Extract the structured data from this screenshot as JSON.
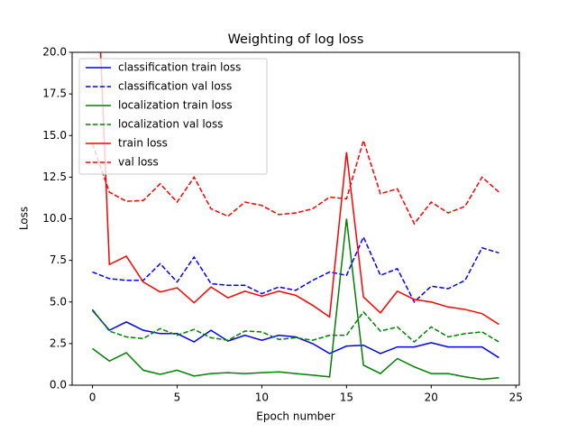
{
  "chart_data": {
    "type": "line",
    "title": "Weighting of log loss",
    "x_label": "Epoch number",
    "y_label": "Loss",
    "x": [
      0,
      1,
      2,
      3,
      4,
      5,
      6,
      7,
      8,
      9,
      10,
      11,
      12,
      13,
      14,
      15,
      16,
      17,
      18,
      19,
      20,
      21,
      22,
      23,
      24
    ],
    "series": [
      {
        "name": "classification train loss",
        "color": "#0000ff",
        "linestyle": "solid",
        "values": [
          4.5,
          3.3,
          3.8,
          3.3,
          3.1,
          3.1,
          2.6,
          3.3,
          2.65,
          3.0,
          2.7,
          3.0,
          2.9,
          2.5,
          1.9,
          2.35,
          2.4,
          1.9,
          2.3,
          2.3,
          2.55,
          2.3,
          2.3,
          2.3,
          1.65
        ]
      },
      {
        "name": "classification val loss",
        "color": "#0000ff",
        "linestyle": "dashed",
        "values": [
          6.8,
          6.4,
          6.3,
          6.3,
          7.3,
          6.2,
          7.7,
          6.1,
          6.0,
          6.0,
          5.5,
          5.9,
          5.7,
          6.3,
          6.8,
          6.6,
          8.9,
          6.6,
          7.0,
          5.0,
          5.95,
          5.8,
          6.3,
          8.25,
          7.95
        ]
      },
      {
        "name": "localization train loss",
        "color": "#008000",
        "linestyle": "solid",
        "values": [
          2.2,
          1.45,
          1.95,
          0.9,
          0.65,
          0.9,
          0.55,
          0.7,
          0.75,
          0.7,
          0.75,
          0.8,
          0.7,
          0.6,
          0.5,
          10.0,
          1.2,
          0.7,
          1.6,
          1.1,
          0.7,
          0.7,
          0.5,
          0.35,
          0.45
        ]
      },
      {
        "name": "localization val loss",
        "color": "#008000",
        "linestyle": "dashed",
        "values": [
          4.55,
          3.25,
          2.9,
          2.8,
          3.4,
          3.0,
          3.35,
          2.85,
          2.7,
          3.25,
          3.2,
          2.75,
          2.85,
          2.7,
          3.0,
          3.0,
          4.4,
          3.25,
          3.5,
          2.6,
          3.5,
          2.9,
          3.1,
          3.2,
          2.6
        ]
      },
      {
        "name": "train loss",
        "color": "#ff0000",
        "linestyle": "solid",
        "values": [
          31.8,
          7.25,
          7.75,
          6.2,
          5.6,
          5.85,
          4.95,
          5.9,
          5.25,
          5.65,
          5.35,
          5.65,
          5.4,
          4.8,
          4.1,
          14.0,
          5.3,
          4.35,
          5.65,
          5.15,
          5.0,
          4.7,
          4.55,
          4.3,
          3.65
        ]
      },
      {
        "name": "val loss",
        "color": "#ff0000",
        "linestyle": "dashed",
        "values": [
          14.5,
          11.6,
          11.05,
          11.1,
          12.1,
          11.0,
          12.5,
          10.6,
          10.15,
          11.0,
          10.8,
          10.25,
          10.35,
          10.6,
          11.3,
          11.2,
          14.7,
          11.5,
          11.8,
          9.7,
          11.0,
          10.35,
          10.75,
          12.5,
          11.6
        ]
      }
    ],
    "xlim": [
      -1.2,
      25.2
    ],
    "xticks": [
      0,
      5,
      10,
      15,
      20,
      25
    ],
    "ylim": [
      0,
      20
    ],
    "yticks": [
      {
        "value": 0,
        "label": "0.0"
      },
      {
        "value": 2.5,
        "label": "2.5"
      },
      {
        "value": 5,
        "label": "5.0"
      },
      {
        "value": 7.5,
        "label": "7.5"
      },
      {
        "value": 10,
        "label": "10.0"
      },
      {
        "value": 12.5,
        "label": "12.5"
      },
      {
        "value": 15,
        "label": "15.0"
      },
      {
        "value": 17.5,
        "label": "17.5"
      },
      {
        "value": 20,
        "label": "20.0"
      }
    ],
    "grid": false,
    "legend_loc": "upper left"
  }
}
